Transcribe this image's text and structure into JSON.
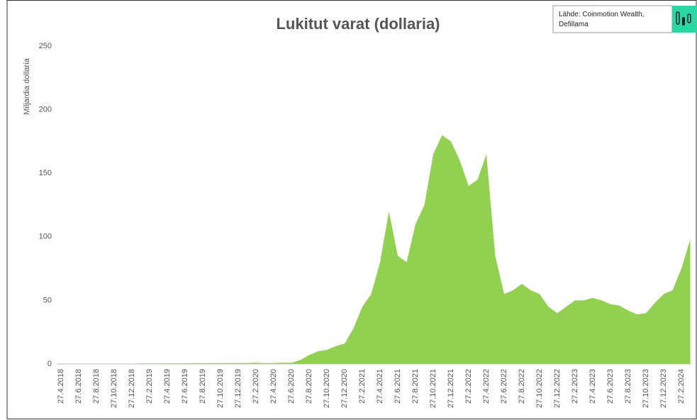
{
  "chart_data": {
    "type": "area",
    "title": "Lukitut varat (dollaria)",
    "source": "Lähde: Coinmotion Wealth,",
    "source_2": "Defillama",
    "y_label": "Miljardia dollaria",
    "categories": [
      "27.4.2018",
      null,
      "27.6.2018",
      null,
      "27.8.2018",
      null,
      "27.10.2018",
      null,
      "27.12.2018",
      null,
      "27.2.2019",
      null,
      "27.4.2019",
      null,
      "27.6.2019",
      null,
      "27.8.2019",
      null,
      "27.10.2019",
      null,
      "27.12.2019",
      null,
      "27.2.2020",
      null,
      "27.4.2020",
      null,
      "27.6.2020",
      null,
      "27.8.2020",
      null,
      "27.10.2020",
      null,
      "27.12.2020",
      null,
      "27.2.2021",
      null,
      "27.4.2021",
      null,
      "27.6.2021",
      null,
      "27.8.2021",
      null,
      "27.10.2021",
      null,
      "27.12.2021",
      null,
      "27.2.2022",
      null,
      "27.4.2022",
      null,
      "27.6.2022",
      null,
      "27.8.2022",
      null,
      "27.10.2022",
      null,
      "27.12.2022",
      null,
      "27.2.2023",
      null,
      "27.4.2023",
      null,
      "27.6.2023",
      null,
      "27.8.2023",
      null,
      "27.10.2023",
      null,
      "27.12.2023",
      null,
      "27.2.2024",
      null
    ],
    "series": [
      {
        "name": "Lukitut varat",
        "color": "#92d050",
        "values": [
          0.3,
          0.3,
          0.3,
          0.3,
          0.3,
          0.3,
          0.3,
          0.3,
          0.3,
          0.4,
          0.4,
          0.4,
          0.5,
          0.5,
          0.5,
          0.6,
          0.6,
          0.6,
          0.7,
          0.7,
          0.7,
          0.8,
          1,
          0.6,
          0.8,
          1,
          1,
          3,
          7,
          10,
          11,
          14,
          16,
          28,
          45,
          55,
          80,
          120,
          85,
          80,
          110,
          125,
          165,
          180,
          175,
          160,
          140,
          145,
          165,
          85,
          55,
          58,
          63,
          58,
          55,
          45,
          40,
          45,
          50,
          50,
          52,
          50,
          47,
          46,
          42,
          39,
          40,
          48,
          55,
          58,
          75,
          98
        ]
      }
    ],
    "ylim": [
      0,
      250
    ],
    "yticks": [
      0,
      50,
      100,
      150,
      200,
      250
    ],
    "grid": false
  }
}
